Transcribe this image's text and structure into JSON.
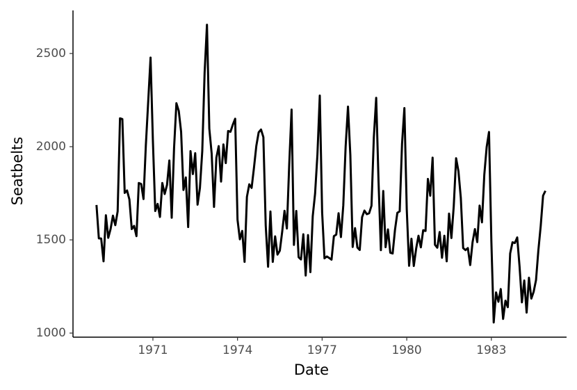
{
  "chart_data": {
    "type": "line",
    "x_label": "Date",
    "y_label": "Seatbelts",
    "x": [
      "1969-01",
      "1969-02",
      "1969-03",
      "1969-04",
      "1969-05",
      "1969-06",
      "1969-07",
      "1969-08",
      "1969-09",
      "1969-10",
      "1969-11",
      "1969-12",
      "1970-01",
      "1970-02",
      "1970-03",
      "1970-04",
      "1970-05",
      "1970-06",
      "1970-07",
      "1970-08",
      "1970-09",
      "1970-10",
      "1970-11",
      "1970-12",
      "1971-01",
      "1971-02",
      "1971-03",
      "1971-04",
      "1971-05",
      "1971-06",
      "1971-07",
      "1971-08",
      "1971-09",
      "1971-10",
      "1971-11",
      "1971-12",
      "1972-01",
      "1972-02",
      "1972-03",
      "1972-04",
      "1972-05",
      "1972-06",
      "1972-07",
      "1972-08",
      "1972-09",
      "1972-10",
      "1972-11",
      "1972-12",
      "1973-01",
      "1973-02",
      "1973-03",
      "1973-04",
      "1973-05",
      "1973-06",
      "1973-07",
      "1973-08",
      "1973-09",
      "1973-10",
      "1973-11",
      "1973-12",
      "1974-01",
      "1974-02",
      "1974-03",
      "1974-04",
      "1974-05",
      "1974-06",
      "1974-07",
      "1974-08",
      "1974-09",
      "1974-10",
      "1974-11",
      "1974-12",
      "1975-01",
      "1975-02",
      "1975-03",
      "1975-04",
      "1975-05",
      "1975-06",
      "1975-07",
      "1975-08",
      "1975-09",
      "1975-10",
      "1975-11",
      "1975-12",
      "1976-01",
      "1976-02",
      "1976-03",
      "1976-04",
      "1976-05",
      "1976-06",
      "1976-07",
      "1976-08",
      "1976-09",
      "1976-10",
      "1976-11",
      "1976-12",
      "1977-01",
      "1977-02",
      "1977-03",
      "1977-04",
      "1977-05",
      "1977-06",
      "1977-07",
      "1977-08",
      "1977-09",
      "1977-10",
      "1977-11",
      "1977-12",
      "1978-01",
      "1978-02",
      "1978-03",
      "1978-04",
      "1978-05",
      "1978-06",
      "1978-07",
      "1978-08",
      "1978-09",
      "1978-10",
      "1978-11",
      "1978-12",
      "1979-01",
      "1979-02",
      "1979-03",
      "1979-04",
      "1979-05",
      "1979-06",
      "1979-07",
      "1979-08",
      "1979-09",
      "1979-10",
      "1979-11",
      "1979-12",
      "1980-01",
      "1980-02",
      "1980-03",
      "1980-04",
      "1980-05",
      "1980-06",
      "1980-07",
      "1980-08",
      "1980-09",
      "1980-10",
      "1980-11",
      "1980-12",
      "1981-01",
      "1981-02",
      "1981-03",
      "1981-04",
      "1981-05",
      "1981-06",
      "1981-07",
      "1981-08",
      "1981-09",
      "1981-10",
      "1981-11",
      "1981-12",
      "1982-01",
      "1982-02",
      "1982-03",
      "1982-04",
      "1982-05",
      "1982-06",
      "1982-07",
      "1982-08",
      "1982-09",
      "1982-10",
      "1982-11",
      "1982-12",
      "1983-01",
      "1983-02",
      "1983-03",
      "1983-04",
      "1983-05",
      "1983-06",
      "1983-07",
      "1983-08",
      "1983-09",
      "1983-10",
      "1983-11",
      "1983-12",
      "1984-01",
      "1984-02",
      "1984-03",
      "1984-04",
      "1984-05",
      "1984-06",
      "1984-07",
      "1984-08",
      "1984-09",
      "1984-10",
      "1984-11",
      "1984-12"
    ],
    "values": [
      1687,
      1508,
      1507,
      1385,
      1632,
      1511,
      1559,
      1630,
      1579,
      1653,
      2152,
      2148,
      1752,
      1765,
      1717,
      1558,
      1575,
      1520,
      1805,
      1800,
      1719,
      2008,
      2242,
      2478,
      2030,
      1655,
      1693,
      1623,
      1805,
      1746,
      1795,
      1926,
      1619,
      1992,
      2233,
      2192,
      2080,
      1768,
      1835,
      1569,
      1976,
      1853,
      1965,
      1689,
      1778,
      1976,
      2397,
      2654,
      2097,
      1963,
      1677,
      1941,
      2003,
      1813,
      2012,
      1912,
      2084,
      2080,
      2118,
      2150,
      1608,
      1503,
      1548,
      1382,
      1731,
      1798,
      1779,
      1887,
      2004,
      2077,
      2092,
      2051,
      1577,
      1356,
      1652,
      1382,
      1519,
      1421,
      1442,
      1543,
      1656,
      1561,
      1905,
      2199,
      1473,
      1655,
      1407,
      1395,
      1530,
      1309,
      1526,
      1327,
      1627,
      1748,
      1958,
      2274,
      1648,
      1401,
      1411,
      1403,
      1394,
      1520,
      1528,
      1643,
      1515,
      1685,
      2000,
      2215,
      1956,
      1462,
      1563,
      1459,
      1446,
      1622,
      1657,
      1638,
      1643,
      1683,
      2050,
      2262,
      1813,
      1445,
      1762,
      1461,
      1556,
      1431,
      1427,
      1554,
      1645,
      1653,
      2016,
      2207,
      1665,
      1361,
      1506,
      1360,
      1453,
      1522,
      1460,
      1552,
      1548,
      1827,
      1737,
      1941,
      1474,
      1458,
      1542,
      1404,
      1522,
      1385,
      1641,
      1510,
      1681,
      1938,
      1868,
      1726,
      1456,
      1445,
      1456,
      1365,
      1487,
      1558,
      1488,
      1684,
      1594,
      1850,
      1998,
      2079,
      1494,
      1057,
      1218,
      1168,
      1236,
      1076,
      1174,
      1139,
      1427,
      1487,
      1483,
      1513,
      1357,
      1165,
      1282,
      1110,
      1297,
      1185,
      1222,
      1284,
      1444,
      1575,
      1737,
      1763
    ],
    "color": "#000000",
    "xlim": [
      "1968-03",
      "1985-09"
    ],
    "xticks": [
      1971,
      1974,
      1977,
      1980,
      1983
    ],
    "ylim": [
      978,
      2731
    ],
    "yticks": [
      1000,
      1500,
      2000,
      2500
    ],
    "grid": false
  }
}
